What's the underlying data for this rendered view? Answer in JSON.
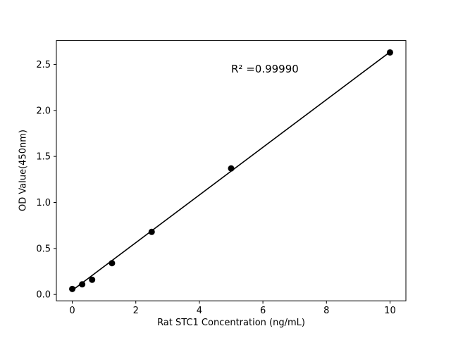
{
  "figure": {
    "background": "#ffffff"
  },
  "chart_data": {
    "type": "scatter",
    "title": "",
    "xlabel": "Rat STC1 Concentration (ng/mL)",
    "ylabel": "OD Value(450nm)",
    "annotation": {
      "text": "R² =0.99990",
      "x": 5.0,
      "y": 2.4
    },
    "x": [
      0,
      0.3125,
      0.625,
      1.25,
      2.5,
      5,
      10
    ],
    "y": [
      0.06,
      0.11,
      0.16,
      0.34,
      0.68,
      1.37,
      2.63
    ],
    "fit_line": {
      "x1": 0,
      "y1": 0.045,
      "x2": 10,
      "y2": 2.635
    },
    "xlim": [
      -0.5,
      10.5
    ],
    "ylim": [
      -0.069,
      2.759
    ],
    "xticks": [
      {
        "v": 0,
        "label": "0"
      },
      {
        "v": 2,
        "label": "2"
      },
      {
        "v": 4,
        "label": "4"
      },
      {
        "v": 6,
        "label": "6"
      },
      {
        "v": 8,
        "label": "8"
      },
      {
        "v": 10,
        "label": "10"
      }
    ],
    "yticks": [
      {
        "v": 0.0,
        "label": "0.0"
      },
      {
        "v": 0.5,
        "label": "0.5"
      },
      {
        "v": 1.0,
        "label": "1.0"
      },
      {
        "v": 1.5,
        "label": "1.5"
      },
      {
        "v": 2.0,
        "label": "2.0"
      },
      {
        "v": 2.5,
        "label": "2.5"
      }
    ],
    "grid": false,
    "legend": null,
    "colors": {
      "marker": "#000000",
      "line": "#000000",
      "axis": "#000000",
      "text": "#000000"
    }
  }
}
